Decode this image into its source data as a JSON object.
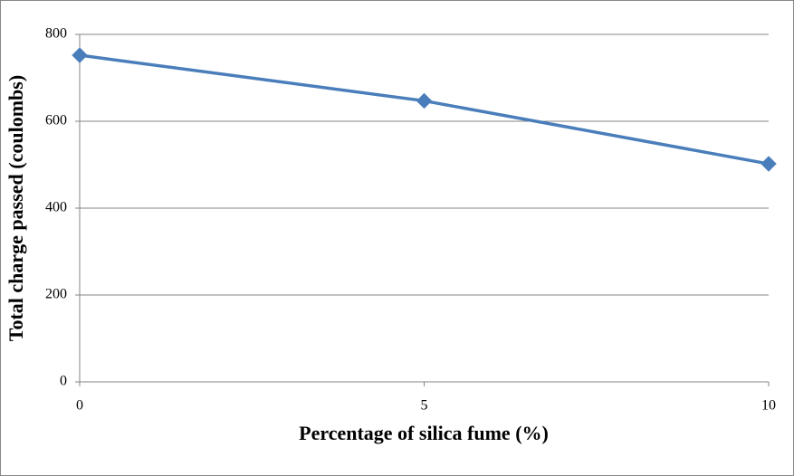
{
  "chart_data": {
    "type": "line",
    "x": [
      0,
      5,
      10
    ],
    "values": [
      752,
      647,
      502
    ],
    "color": "#4a7ebb",
    "marker": "diamond",
    "xlim": [
      0,
      10
    ],
    "xticks": [
      0,
      5,
      10
    ],
    "ylim": [
      0,
      800
    ],
    "yticks": [
      0,
      200,
      400,
      600,
      800
    ],
    "grid": true,
    "x_label": "Percentage of silica fume (%)",
    "y_label": "Total charge passed (coulombs)"
  }
}
